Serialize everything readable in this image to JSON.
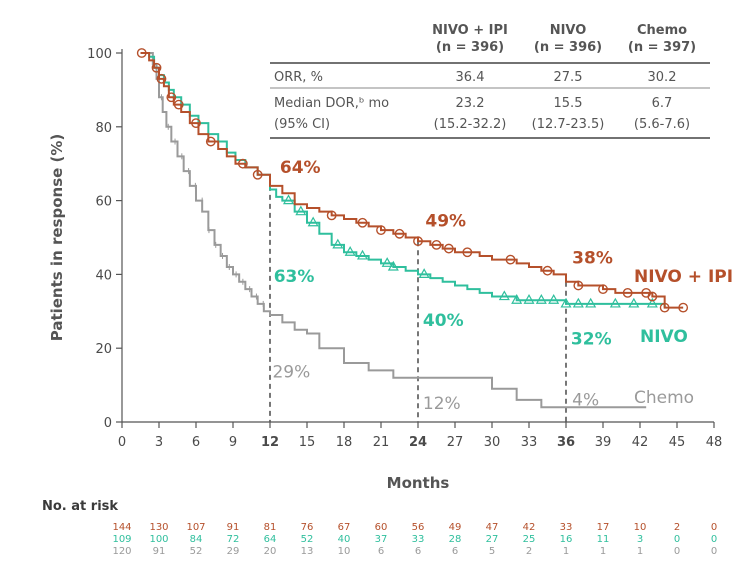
{
  "chart_data": {
    "type": "line",
    "title": "",
    "xlabel": "Months",
    "ylabel": "Patients in response (%)",
    "xlim": [
      0,
      48
    ],
    "ylim": [
      0,
      100
    ],
    "x_ticks": [
      0,
      3,
      6,
      9,
      12,
      15,
      18,
      21,
      24,
      27,
      30,
      33,
      36,
      39,
      42,
      45,
      48
    ],
    "x_ticks_bold": [
      12,
      24,
      36
    ],
    "y_ticks": [
      0,
      20,
      40,
      60,
      80,
      100
    ],
    "reference_lines": [
      12,
      24,
      36
    ],
    "series": [
      {
        "name": "NIVO + IPI",
        "color": "#b5502b",
        "x": [
          1.5,
          2.2,
          2.6,
          3.0,
          3.4,
          3.8,
          4.2,
          4.8,
          5.5,
          6.2,
          7.0,
          7.8,
          8.5,
          9.2,
          10.0,
          11.0,
          12.0,
          13.0,
          14.0,
          15.0,
          16.0,
          17.0,
          18.0,
          19.0,
          20.0,
          21.0,
          22.0,
          23.0,
          24.0,
          25.0,
          26.0,
          27.0,
          28.0,
          29.0,
          30.0,
          31.0,
          32.0,
          33.0,
          34.0,
          35.0,
          36.0,
          37.0,
          38.0,
          39.0,
          40.0,
          41.0,
          42.0,
          43.0,
          44.0,
          45.0,
          45.5
        ],
        "values": [
          100,
          98,
          96,
          93,
          91,
          88,
          86,
          84,
          81,
          78,
          76,
          74,
          72,
          70,
          69,
          67,
          64,
          62,
          59,
          58,
          57,
          56,
          55,
          54,
          53,
          52,
          51,
          50,
          49,
          48,
          47,
          46,
          46,
          45,
          44,
          44,
          43,
          42,
          41,
          40,
          38,
          37,
          37,
          36,
          35,
          35,
          35,
          34,
          31,
          31,
          31
        ],
        "markers_x": [
          1.6,
          2.8,
          3.2,
          4.0,
          4.6,
          6.0,
          7.2,
          9.8,
          11.0,
          17.0,
          19.5,
          21.0,
          22.5,
          24.0,
          25.5,
          26.5,
          28.0,
          31.5,
          34.5,
          37.0,
          39.0,
          41.0,
          42.5,
          43.0,
          44.0,
          45.5
        ],
        "annotations": [
          {
            "x": 12.8,
            "y": 67.5,
            "text": "64%"
          },
          {
            "x": 24.6,
            "y": 53,
            "text": "49%"
          },
          {
            "x": 36.5,
            "y": 43,
            "text": "38%"
          }
        ],
        "end_label": "NIVO + IPI"
      },
      {
        "name": "NIVO",
        "color": "#2fbf9d",
        "x": [
          1.5,
          2.2,
          2.6,
          3.0,
          3.4,
          3.8,
          4.2,
          4.8,
          5.5,
          6.2,
          7.0,
          7.8,
          8.5,
          9.2,
          10.0,
          11.0,
          12.0,
          12.5,
          13.0,
          14.0,
          15.0,
          16.0,
          17.0,
          18.0,
          19.0,
          20.0,
          21.0,
          22.0,
          23.0,
          24.0,
          25.0,
          26.0,
          27.0,
          28.0,
          29.0,
          30.0,
          31.0,
          32.0,
          34.0,
          36.0,
          38.0,
          40.0,
          44.0
        ],
        "values": [
          100,
          99,
          96,
          94,
          92,
          90,
          88,
          86,
          83,
          81,
          78,
          76,
          73,
          71,
          69,
          67,
          63,
          61,
          60,
          57,
          54,
          51,
          48,
          46,
          45,
          44,
          43,
          42,
          41,
          40,
          39,
          38,
          37,
          36,
          35,
          34,
          34,
          33,
          33,
          32,
          32,
          32,
          31
        ],
        "markers_x": [
          13.5,
          14.5,
          15.5,
          17.5,
          18.5,
          19.5,
          21.5,
          22.0,
          24.5,
          31.0,
          32.0,
          33.0,
          34.0,
          35.0,
          36.0,
          37.0,
          38.0,
          40.0,
          41.5,
          43.0
        ],
        "annotations": [
          {
            "x": 12.3,
            "y": 38,
            "text": "63%"
          },
          {
            "x": 24.4,
            "y": 26,
            "text": "40%"
          },
          {
            "x": 36.4,
            "y": 21,
            "text": "32%"
          }
        ],
        "end_label": "NIVO"
      },
      {
        "name": "Chemo",
        "color": "#9a9a9a",
        "x": [
          1.5,
          2.5,
          2.8,
          3.0,
          3.3,
          3.6,
          4.0,
          4.5,
          5.0,
          5.5,
          6.0,
          6.5,
          7.0,
          7.5,
          8.0,
          8.5,
          9.0,
          9.5,
          10.0,
          10.5,
          11.0,
          11.5,
          12.0,
          13.0,
          14.0,
          15.0,
          16.0,
          18.0,
          20.0,
          22.0,
          24.0,
          26.0,
          28.0,
          30.0,
          32.0,
          34.0,
          36.0,
          38.0,
          40.0,
          42.5
        ],
        "values": [
          100,
          97,
          93,
          88,
          84,
          80,
          76,
          72,
          68,
          64,
          60,
          57,
          52,
          48,
          45,
          42,
          40,
          38,
          36,
          34,
          32,
          30,
          29,
          27,
          25,
          24,
          20,
          16,
          14,
          12,
          12,
          12,
          12,
          9,
          6,
          4,
          4,
          4,
          4,
          4
        ],
        "annotations": [
          {
            "x": 12.2,
            "y": 12,
            "text": "29%"
          },
          {
            "x": 24.4,
            "y": 3.5,
            "text": "12%"
          },
          {
            "x": 36.5,
            "y": 4.5,
            "text": "4%"
          }
        ],
        "end_label": "Chemo"
      }
    ],
    "table": {
      "headers": [
        [
          "NIVO + IPI",
          "(n = 396)"
        ],
        [
          "NIVO",
          "(n = 396)"
        ],
        [
          "Chemo",
          "(n = 397)"
        ]
      ],
      "rows": [
        {
          "label": "ORR, %",
          "label2": "",
          "values": [
            "36.4",
            "27.5",
            "30.2"
          ],
          "values2": []
        },
        {
          "label": "Median DOR,ᵇ mo",
          "label2": "(95% CI)",
          "values": [
            "23.2",
            "15.5",
            "6.7"
          ],
          "values2": [
            "(15.2-32.2)",
            "(12.7-23.5)",
            "(5.6-7.6)"
          ]
        }
      ]
    },
    "at_risk": {
      "title": "No. at risk",
      "rows": [
        {
          "color": "#b5502b",
          "values": [
            "144",
            "130",
            "107",
            "91",
            "81",
            "76",
            "67",
            "60",
            "56",
            "49",
            "47",
            "42",
            "33",
            "17",
            "10",
            "2",
            "0"
          ]
        },
        {
          "color": "#2fbf9d",
          "values": [
            "109",
            "100",
            "84",
            "72",
            "64",
            "52",
            "40",
            "37",
            "33",
            "28",
            "27",
            "25",
            "16",
            "11",
            "3",
            "0",
            "0"
          ]
        },
        {
          "color": "#9a9a9a",
          "values": [
            "120",
            "91",
            "52",
            "29",
            "20",
            "13",
            "10",
            "6",
            "6",
            "6",
            "5",
            "2",
            "1",
            "1",
            "1",
            "0",
            "0"
          ]
        }
      ]
    }
  }
}
